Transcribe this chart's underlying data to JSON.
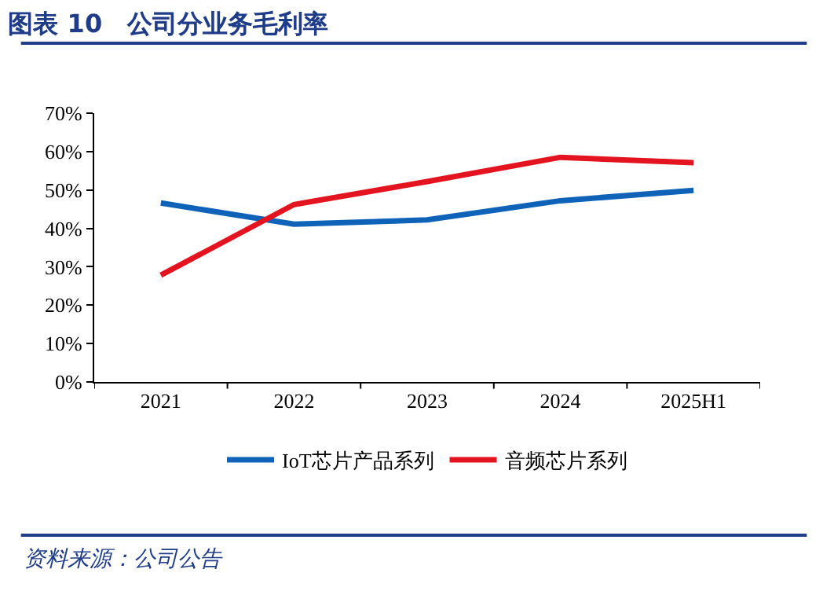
{
  "chart_data": {
    "type": "line",
    "title": "图表 10　公司分业务毛利率",
    "categories": [
      "2021",
      "2022",
      "2023",
      "2024",
      "2025H1"
    ],
    "series": [
      {
        "name": "IoT芯片产品系列",
        "color": "#0e62b8",
        "values": [
          46.6,
          41.1,
          42.2,
          47.2,
          49.9
        ]
      },
      {
        "name": "音频芯片系列",
        "color": "#e3141f",
        "values": [
          27.8,
          46.2,
          52.2,
          58.5,
          57.1
        ]
      }
    ],
    "ylim": [
      0,
      70
    ],
    "yticks": [
      {
        "value": 0,
        "label": "0%"
      },
      {
        "value": 10,
        "label": "10%"
      },
      {
        "value": 20,
        "label": "20%"
      },
      {
        "value": 30,
        "label": "30%"
      },
      {
        "value": 40,
        "label": "40%"
      },
      {
        "value": 50,
        "label": "50%"
      },
      {
        "value": 60,
        "label": "60%"
      },
      {
        "value": 70,
        "label": "70%"
      }
    ],
    "legend": "bottom",
    "marker": "none",
    "line_style": "solid",
    "annotations": [
      "资料来源：公司公告"
    ]
  }
}
